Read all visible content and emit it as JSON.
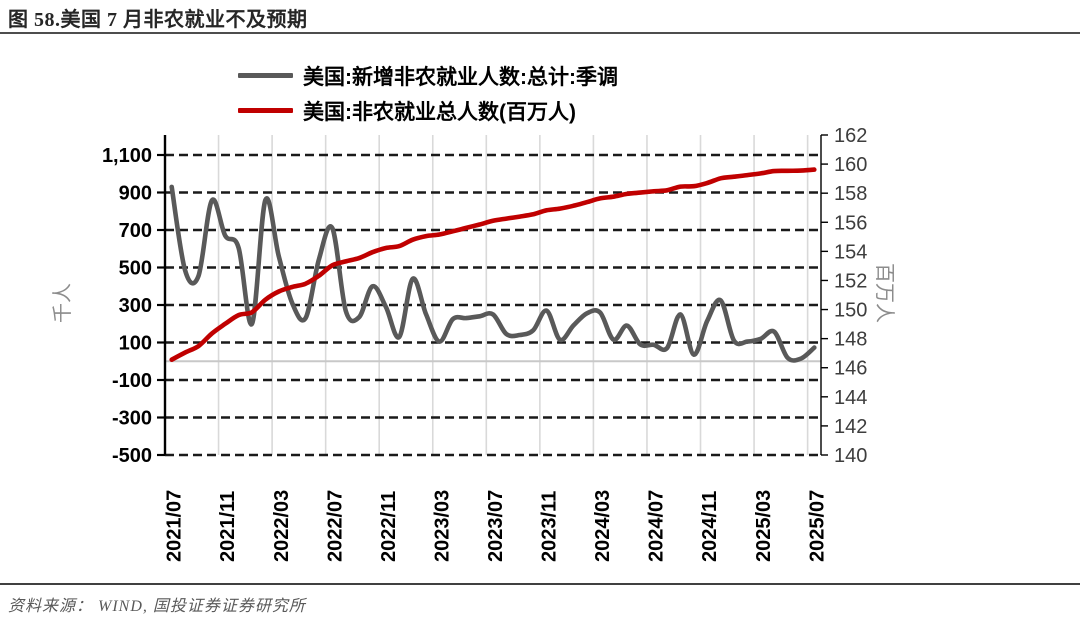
{
  "figure": {
    "title": "图 58.美国 7 月非农就业不及预期",
    "source": "资料来源：  WIND,  国投证券证券研究所"
  },
  "chart_data": {
    "type": "line",
    "title": "图 58.美国 7 月非农就业不及预期",
    "legend_position": "top",
    "grid": {
      "horizontal": "dashed",
      "vertical": "solid"
    },
    "colors": {
      "series1": "#595959",
      "series2": "#c00000",
      "vgrid": "#d9d9d9",
      "hgrid": "#1a1a1a",
      "zero_line": "#c8c8c8",
      "axis": "#000000",
      "left_tick_text": "#000000",
      "right_tick_text": "#3d3d3d"
    },
    "x": [
      "2021/07",
      "2021/08",
      "2021/09",
      "2021/10",
      "2021/11",
      "2021/12",
      "2022/01",
      "2022/02",
      "2022/03",
      "2022/04",
      "2022/05",
      "2022/06",
      "2022/07",
      "2022/08",
      "2022/09",
      "2022/10",
      "2022/11",
      "2022/12",
      "2023/01",
      "2023/02",
      "2023/03",
      "2023/04",
      "2023/05",
      "2023/06",
      "2023/07",
      "2023/08",
      "2023/09",
      "2023/10",
      "2023/11",
      "2023/12",
      "2024/01",
      "2024/02",
      "2024/03",
      "2024/04",
      "2024/05",
      "2024/06",
      "2024/07",
      "2024/08",
      "2024/09",
      "2024/10",
      "2024/11",
      "2024/12",
      "2025/01",
      "2025/02",
      "2025/03",
      "2025/04",
      "2025/05",
      "2025/06",
      "2025/07"
    ],
    "x_tick_step": 4,
    "x_tick_labels": [
      "2021/07",
      "2021/11",
      "2022/03",
      "2022/07",
      "2022/11",
      "2023/03",
      "2023/07",
      "2023/11",
      "2024/03",
      "2024/07",
      "2024/11",
      "2025/03",
      "2025/07"
    ],
    "series": [
      {
        "name": "美国:新增非农就业人数:总计:季调",
        "axis": "left",
        "color": "#595959",
        "values": [
          930,
          485,
          455,
          858,
          670,
          605,
          200,
          860,
          560,
          310,
          230,
          545,
          710,
          270,
          235,
          400,
          290,
          130,
          440,
          250,
          105,
          225,
          230,
          240,
          250,
          145,
          140,
          165,
          270,
          115,
          190,
          255,
          260,
          115,
          190,
          90,
          88,
          70,
          250,
          35,
          215,
          325,
          110,
          105,
          120,
          158,
          19,
          14,
          73
        ]
      },
      {
        "name": "美国:非农就业总人数(百万人)",
        "axis": "right",
        "color": "#c00000",
        "values": [
          146.55,
          147.04,
          147.49,
          148.35,
          149.02,
          149.62,
          149.82,
          150.68,
          151.24,
          151.55,
          151.78,
          152.33,
          153.04,
          153.31,
          153.54,
          153.94,
          154.23,
          154.36,
          154.8,
          155.05,
          155.16,
          155.38,
          155.61,
          155.85,
          156.1,
          156.25,
          156.39,
          156.55,
          156.82,
          156.94,
          157.13,
          157.38,
          157.64,
          157.76,
          157.95,
          158.04,
          158.13,
          158.2,
          158.45,
          158.48,
          158.7,
          159.02,
          159.13,
          159.24,
          159.36,
          159.52,
          159.54,
          159.55,
          159.62
        ]
      }
    ],
    "left_axis": {
      "title": "千人",
      "min": -500,
      "max": 1100,
      "step": 200,
      "tick_labels": [
        "1,100",
        "900",
        "700",
        "500",
        "300",
        "100",
        "-100",
        "-300",
        "-500"
      ]
    },
    "right_axis": {
      "title": "百万人",
      "min": 140,
      "max": 162,
      "step": 2,
      "tick_labels": [
        "162",
        "160",
        "158",
        "156",
        "154",
        "152",
        "150",
        "148",
        "146",
        "144",
        "142",
        "140"
      ]
    }
  }
}
